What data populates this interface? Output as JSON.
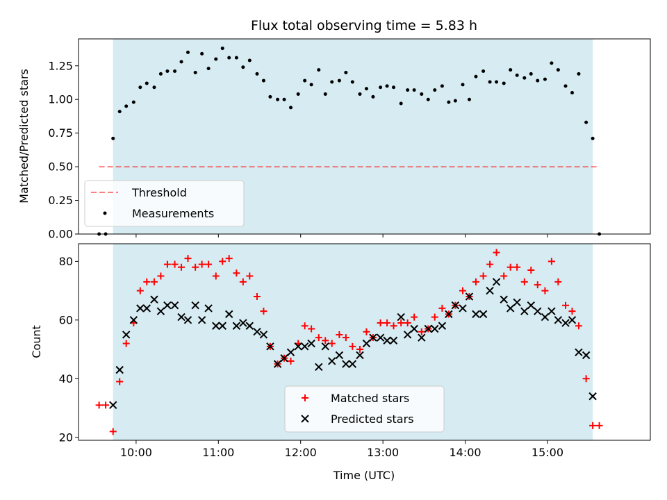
{
  "title": "Flux total observing time = 5.83 h",
  "colors": {
    "band": "#add8e6",
    "threshold": "#ff0000",
    "measurement": "#000000",
    "matched": "#ff0000",
    "predicted": "#000000"
  },
  "chart_data": [
    {
      "type": "scatter",
      "ylabel": "Matched/Predicted stars",
      "ylim": [
        0,
        1.45
      ],
      "xlim": [
        9.3,
        16.25
      ],
      "yticks": [
        0.0,
        0.25,
        0.5,
        0.75,
        1.0,
        1.25
      ],
      "ytick_labels": [
        "0.00",
        "0.25",
        "0.50",
        "0.75",
        "1.00",
        "1.25"
      ],
      "observing_band": [
        9.72,
        15.55
      ],
      "threshold": {
        "value": 0.5,
        "x_range": [
          9.55,
          15.63
        ]
      },
      "legend": {
        "placement": "lower-left",
        "entries": [
          "Threshold",
          "Measurements"
        ]
      },
      "series": [
        {
          "name": "Measurements",
          "x": [
            9.55,
            9.63,
            9.72,
            9.8,
            9.88,
            9.97,
            10.05,
            10.13,
            10.22,
            10.3,
            10.38,
            10.47,
            10.55,
            10.63,
            10.72,
            10.8,
            10.88,
            10.97,
            11.05,
            11.13,
            11.22,
            11.3,
            11.38,
            11.47,
            11.55,
            11.63,
            11.72,
            11.8,
            11.88,
            11.97,
            12.05,
            12.13,
            12.22,
            12.3,
            12.38,
            12.47,
            12.55,
            12.63,
            12.72,
            12.8,
            12.88,
            12.97,
            13.05,
            13.13,
            13.22,
            13.3,
            13.38,
            13.47,
            13.55,
            13.63,
            13.72,
            13.8,
            13.88,
            13.97,
            14.05,
            14.13,
            14.22,
            14.3,
            14.38,
            14.47,
            14.55,
            14.63,
            14.72,
            14.8,
            14.88,
            14.97,
            15.05,
            15.13,
            15.22,
            15.3,
            15.38,
            15.47,
            15.55,
            15.63
          ],
          "y": [
            0.0,
            0.0,
            0.71,
            0.91,
            0.95,
            0.98,
            1.09,
            1.12,
            1.09,
            1.19,
            1.21,
            1.21,
            1.28,
            1.35,
            1.2,
            1.34,
            1.23,
            1.3,
            1.38,
            1.31,
            1.31,
            1.24,
            1.29,
            1.19,
            1.14,
            1.02,
            1.0,
            1.0,
            0.94,
            1.04,
            1.14,
            1.11,
            1.22,
            1.04,
            1.13,
            1.14,
            1.2,
            1.13,
            1.04,
            1.08,
            1.02,
            1.09,
            1.1,
            1.09,
            0.97,
            1.07,
            1.07,
            1.04,
            1.0,
            1.07,
            1.1,
            0.98,
            0.99,
            1.11,
            1.0,
            1.17,
            1.21,
            1.13,
            1.13,
            1.12,
            1.22,
            1.18,
            1.16,
            1.19,
            1.14,
            1.15,
            1.27,
            1.22,
            1.1,
            1.05,
            1.19,
            0.83,
            0.71,
            0.0
          ]
        }
      ]
    },
    {
      "type": "scatter",
      "xlabel": "Time (UTC)",
      "ylabel": "Count",
      "ylim": [
        19,
        86
      ],
      "xlim": [
        9.3,
        16.25
      ],
      "yticks": [
        20,
        40,
        60,
        80
      ],
      "ytick_labels": [
        "20",
        "40",
        "60",
        "80"
      ],
      "xticks": [
        10,
        11,
        12,
        13,
        14,
        15
      ],
      "xtick_labels": [
        "10:00",
        "11:00",
        "12:00",
        "13:00",
        "14:00",
        "15:00"
      ],
      "observing_band": [
        9.72,
        15.55
      ],
      "legend": {
        "placement": "lower-center",
        "entries": [
          "Matched stars",
          "Predicted stars"
        ]
      },
      "series": [
        {
          "name": "Matched stars",
          "x": [
            9.55,
            9.63,
            9.72,
            9.8,
            9.88,
            9.97,
            10.05,
            10.13,
            10.22,
            10.3,
            10.38,
            10.47,
            10.55,
            10.63,
            10.72,
            10.8,
            10.88,
            10.97,
            11.05,
            11.13,
            11.22,
            11.3,
            11.38,
            11.47,
            11.55,
            11.63,
            11.72,
            11.8,
            11.88,
            11.97,
            12.05,
            12.13,
            12.22,
            12.3,
            12.38,
            12.47,
            12.55,
            12.63,
            12.72,
            12.8,
            12.88,
            12.97,
            13.05,
            13.13,
            13.22,
            13.3,
            13.38,
            13.47,
            13.55,
            13.63,
            13.72,
            13.8,
            13.88,
            13.97,
            14.05,
            14.13,
            14.22,
            14.3,
            14.38,
            14.47,
            14.55,
            14.63,
            14.72,
            14.8,
            14.88,
            14.97,
            15.05,
            15.13,
            15.22,
            15.3,
            15.38,
            15.47,
            15.55,
            15.63
          ],
          "y": [
            31,
            31,
            22,
            39,
            52,
            59,
            70,
            73,
            73,
            75,
            79,
            79,
            78,
            81,
            78,
            79,
            79,
            75,
            80,
            81,
            76,
            73,
            75,
            68,
            63,
            51,
            45,
            47,
            46,
            52,
            58,
            57,
            54,
            53,
            52,
            55,
            54,
            51,
            50,
            56,
            54,
            59,
            59,
            58,
            59,
            59,
            61,
            56,
            57,
            61,
            64,
            62,
            65,
            70,
            68,
            73,
            75,
            79,
            83,
            75,
            78,
            78,
            73,
            77,
            72,
            70,
            80,
            73,
            65,
            63,
            58,
            40,
            24,
            24
          ]
        },
        {
          "name": "Predicted stars",
          "x": [
            9.72,
            9.8,
            9.88,
            9.97,
            10.05,
            10.13,
            10.22,
            10.3,
            10.38,
            10.47,
            10.55,
            10.63,
            10.72,
            10.8,
            10.88,
            10.97,
            11.05,
            11.13,
            11.22,
            11.3,
            11.38,
            11.47,
            11.55,
            11.63,
            11.72,
            11.8,
            11.88,
            11.97,
            12.05,
            12.13,
            12.22,
            12.3,
            12.38,
            12.47,
            12.55,
            12.63,
            12.72,
            12.8,
            12.88,
            12.97,
            13.05,
            13.13,
            13.22,
            13.3,
            13.38,
            13.47,
            13.55,
            13.63,
            13.72,
            13.8,
            13.88,
            13.97,
            14.05,
            14.13,
            14.22,
            14.3,
            14.38,
            14.47,
            14.55,
            14.63,
            14.72,
            14.8,
            14.88,
            14.97,
            15.05,
            15.13,
            15.22,
            15.3,
            15.38,
            15.47,
            15.55
          ],
          "y": [
            31,
            43,
            55,
            60,
            64,
            64,
            67,
            63,
            65,
            65,
            61,
            60,
            65,
            60,
            64,
            58,
            58,
            62,
            58,
            59,
            58,
            56,
            55,
            51,
            45,
            47,
            49,
            51,
            51,
            52,
            44,
            51,
            46,
            48,
            45,
            45,
            48,
            52,
            54,
            54,
            53,
            53,
            61,
            55,
            57,
            54,
            57,
            57,
            58,
            62,
            65,
            64,
            68,
            62,
            62,
            70,
            73,
            67,
            64,
            66,
            63,
            65,
            63,
            61,
            63,
            60,
            59,
            60,
            49,
            48,
            34
          ]
        }
      ]
    }
  ]
}
